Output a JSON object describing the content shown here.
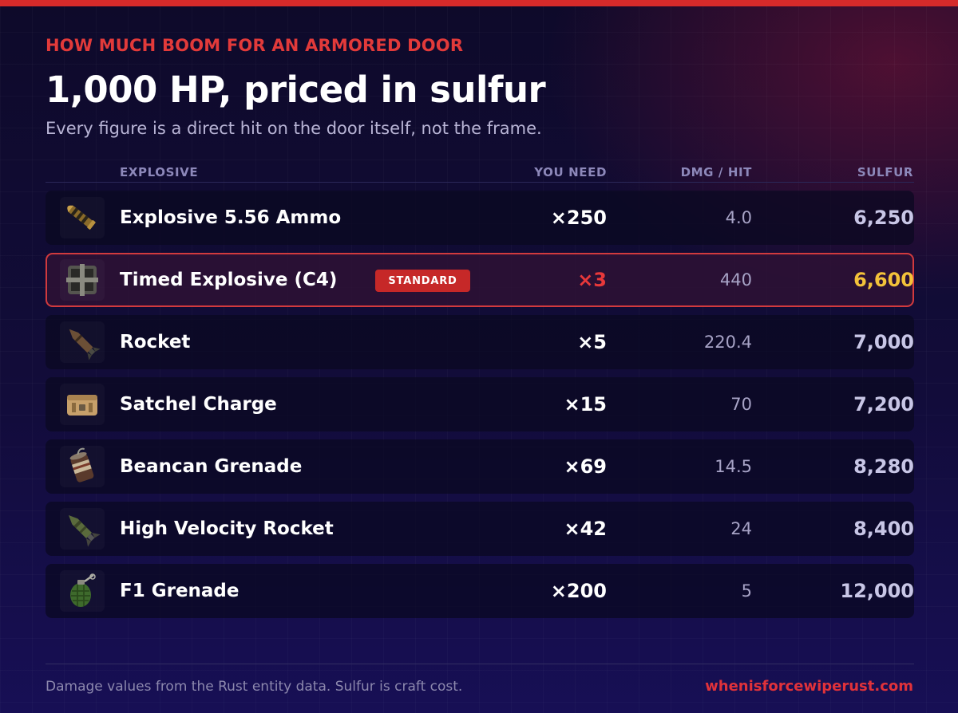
{
  "eyebrow": "HOW MUCH BOOM FOR AN ARMORED DOOR",
  "title": "1,000 HP, priced in sulfur",
  "subtitle": "Every figure is a direct hit on the door itself, not the frame.",
  "columns": {
    "explosive": "EXPLOSIVE",
    "you_need": "YOU NEED",
    "dmg_per_hit": "DMG / HIT",
    "sulfur": "SULFUR"
  },
  "rows": [
    {
      "name": "Explosive 5.56 Ammo",
      "icon": "ammo-icon",
      "need": "×250",
      "dmg": "4.0",
      "sulfur": "6,250"
    },
    {
      "name": "Timed Explosive (C4)",
      "icon": "c4-icon",
      "badge": "STANDARD",
      "need": "×3",
      "dmg": "440",
      "sulfur": "6,600"
    },
    {
      "name": "Rocket",
      "icon": "rocket-icon",
      "need": "×5",
      "dmg": "220.4",
      "sulfur": "7,000"
    },
    {
      "name": "Satchel Charge",
      "icon": "satchel-icon",
      "need": "×15",
      "dmg": "70",
      "sulfur": "7,200"
    },
    {
      "name": "Beancan Grenade",
      "icon": "beancan-icon",
      "need": "×69",
      "dmg": "14.5",
      "sulfur": "8,280"
    },
    {
      "name": "High Velocity Rocket",
      "icon": "hv-rocket-icon",
      "need": "×42",
      "dmg": "24",
      "sulfur": "8,400"
    },
    {
      "name": "F1 Grenade",
      "icon": "f1-grenade-icon",
      "need": "×200",
      "dmg": "5",
      "sulfur": "12,000"
    }
  ],
  "footer": {
    "note": "Damage values from the Rust entity data. Sulfur is craft cost.",
    "link": "whenisforcewiperust.com"
  },
  "colors": {
    "accent_red": "#d62a2a",
    "highlight_gold": "#f3c23a",
    "background": "#120c3a"
  }
}
